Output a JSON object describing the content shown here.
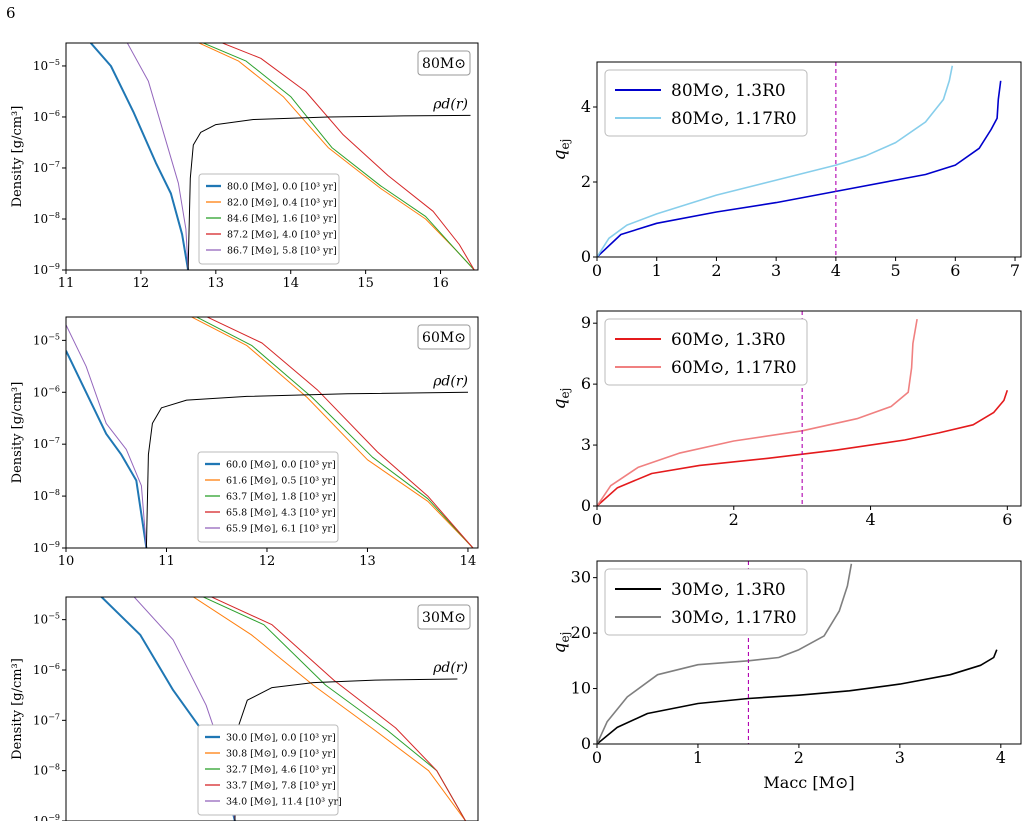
{
  "page_number": "6",
  "chart_data": [
    {
      "type": "line",
      "panel": "80Msun density",
      "mass_label": "80M⊙",
      "rho_label": "ρd(r)",
      "ylabel": "Density [g/cm³]",
      "xlabel": "",
      "y_scale": "log",
      "xlim": [
        11,
        16.5
      ],
      "ylim_exp": [
        -9,
        -4.55
      ],
      "xticks": [
        11,
        12,
        13,
        14,
        15,
        16
      ],
      "yticks": [
        -9,
        -8,
        -7,
        -6,
        -5
      ],
      "legend_position": "lower-center",
      "series": [
        {
          "name": "80.0 [M⊙], 0.0 [10³ yr]",
          "color": "#1f77b4",
          "width": 2.0,
          "x": [
            11.3,
            11.6,
            11.9,
            12.2,
            12.4,
            12.55,
            12.63
          ],
          "y": [
            -4.5,
            -5.0,
            -5.9,
            -6.9,
            -7.5,
            -8.3,
            -9.0
          ]
        },
        {
          "name": "82.0 [M⊙], 0.4 [10³ yr]",
          "color": "#ff7f0e",
          "width": 1.0,
          "x": [
            12.7,
            13.3,
            13.9,
            14.5,
            15.2,
            15.8,
            16.2,
            16.45
          ],
          "y": [
            -4.5,
            -4.9,
            -5.6,
            -6.6,
            -7.4,
            -8.0,
            -8.6,
            -9.0
          ]
        },
        {
          "name": "84.6 [M⊙], 1.6 [10³ yr]",
          "color": "#2ca02c",
          "width": 1.0,
          "x": [
            12.75,
            13.4,
            14.0,
            14.55,
            15.2,
            15.8,
            16.2,
            16.45
          ],
          "y": [
            -4.5,
            -4.9,
            -5.6,
            -6.6,
            -7.35,
            -7.95,
            -8.6,
            -9.0
          ]
        },
        {
          "name": "87.2 [M⊙], 4.0 [10³ yr]",
          "color": "#d62728",
          "width": 1.0,
          "x": [
            13.0,
            13.6,
            14.2,
            14.7,
            15.3,
            15.9,
            16.25,
            16.45
          ],
          "y": [
            -4.5,
            -4.85,
            -5.5,
            -6.35,
            -7.15,
            -7.85,
            -8.5,
            -9.0
          ]
        },
        {
          "name": "86.7 [M⊙], 5.8 [10³ yr]",
          "color": "#9467bd",
          "width": 1.0,
          "x": [
            11.8,
            12.1,
            12.3,
            12.5,
            12.6,
            12.63
          ],
          "y": [
            -4.5,
            -5.3,
            -6.3,
            -7.3,
            -8.2,
            -9.0
          ]
        },
        {
          "name": "ρd(r)",
          "color": "#000000",
          "width": 1.0,
          "legend": false,
          "x": [
            12.63,
            12.66,
            12.7,
            12.8,
            13.0,
            13.5,
            14.5,
            15.5,
            16.4
          ],
          "y": [
            -9.0,
            -7.2,
            -6.55,
            -6.3,
            -6.15,
            -6.05,
            -6.0,
            -5.98,
            -5.97
          ]
        }
      ]
    },
    {
      "type": "line",
      "panel": "60Msun density",
      "mass_label": "60M⊙",
      "rho_label": "ρd(r)",
      "ylabel": "Density [g/cm³]",
      "xlabel": "",
      "y_scale": "log",
      "xlim": [
        10,
        14.1
      ],
      "ylim_exp": [
        -9,
        -4.55
      ],
      "xticks": [
        10,
        11,
        12,
        13,
        14
      ],
      "yticks": [
        -9,
        -8,
        -7,
        -6,
        -5
      ],
      "legend_position": "lower-center",
      "series": [
        {
          "name": "60.0 [M⊙], 0.0 [10³ yr]",
          "color": "#1f77b4",
          "width": 2.0,
          "x": [
            10.0,
            10.2,
            10.4,
            10.55,
            10.7,
            10.8
          ],
          "y": [
            -5.2,
            -6.0,
            -6.8,
            -7.2,
            -7.7,
            -9.0
          ]
        },
        {
          "name": "61.6 [M⊙], 0.5 [10³ yr]",
          "color": "#ff7f0e",
          "width": 1.0,
          "x": [
            11.2,
            11.8,
            12.4,
            13.0,
            13.6,
            14.05
          ],
          "y": [
            -4.5,
            -5.1,
            -6.1,
            -7.3,
            -8.1,
            -9.0
          ]
        },
        {
          "name": "63.7 [M⊙], 1.8 [10³ yr]",
          "color": "#2ca02c",
          "width": 1.0,
          "x": [
            11.25,
            11.85,
            12.45,
            13.05,
            13.6,
            14.05
          ],
          "y": [
            -4.5,
            -5.1,
            -6.1,
            -7.25,
            -8.05,
            -9.0
          ]
        },
        {
          "name": "65.8 [M⊙], 4.3 [10³ yr]",
          "color": "#d62728",
          "width": 1.0,
          "x": [
            11.35,
            11.95,
            12.5,
            13.1,
            13.6,
            14.05
          ],
          "y": [
            -4.5,
            -5.05,
            -5.95,
            -7.15,
            -8.0,
            -9.0
          ]
        },
        {
          "name": "65.9 [M⊙], 6.1 [10³ yr]",
          "color": "#9467bd",
          "width": 1.0,
          "x": [
            10.0,
            10.2,
            10.4,
            10.6,
            10.75,
            10.8
          ],
          "y": [
            -4.7,
            -5.5,
            -6.6,
            -7.1,
            -7.8,
            -9.0
          ]
        },
        {
          "name": "ρd(r)",
          "color": "#000000",
          "width": 1.0,
          "legend": false,
          "x": [
            10.8,
            10.82,
            10.86,
            10.95,
            11.2,
            11.8,
            12.8,
            14.0
          ],
          "y": [
            -9.0,
            -7.2,
            -6.6,
            -6.3,
            -6.15,
            -6.08,
            -6.03,
            -6.0
          ]
        }
      ]
    },
    {
      "type": "line",
      "panel": "30Msun density",
      "mass_label": "30M⊙",
      "rho_label": "ρd(r)",
      "ylabel": "Density [g/cm³]",
      "xlabel": "",
      "y_scale": "log",
      "xlim": [
        0,
        1
      ],
      "ylim_exp": [
        -9,
        -4.55
      ],
      "xticks": [],
      "yticks": [
        -9,
        -8,
        -7,
        -6,
        -5
      ],
      "legend_position": "lower-center",
      "series": [
        {
          "name": "30.0 [M⊙], 0.0 [10³ yr]",
          "color": "#1f77b4",
          "width": 2.0,
          "x": [
            0.08,
            0.18,
            0.26,
            0.33,
            0.38,
            0.41
          ],
          "y": [
            -4.5,
            -5.3,
            -6.4,
            -7.2,
            -8.0,
            -9.0
          ]
        },
        {
          "name": "30.8 [M⊙], 0.9 [10³ yr]",
          "color": "#ff7f0e",
          "width": 1.0,
          "x": [
            0.3,
            0.45,
            0.6,
            0.75,
            0.88,
            0.97
          ],
          "y": [
            -4.5,
            -5.3,
            -6.3,
            -7.2,
            -8.0,
            -9.0
          ]
        },
        {
          "name": "32.7 [M⊙], 4.6 [10³ yr]",
          "color": "#2ca02c",
          "width": 1.0,
          "x": [
            0.32,
            0.48,
            0.63,
            0.78,
            0.9,
            0.97
          ],
          "y": [
            -4.5,
            -5.1,
            -6.3,
            -7.2,
            -8.0,
            -9.0
          ]
        },
        {
          "name": "33.7 [M⊙], 7.8 [10³ yr]",
          "color": "#d62728",
          "width": 1.0,
          "x": [
            0.34,
            0.5,
            0.65,
            0.8,
            0.9,
            0.97
          ],
          "y": [
            -4.5,
            -5.1,
            -6.2,
            -7.15,
            -8.0,
            -9.0
          ]
        },
        {
          "name": "34.0 [M⊙], 11.4 [10³ yr]",
          "color": "#9467bd",
          "width": 1.0,
          "x": [
            0.16,
            0.26,
            0.34,
            0.39,
            0.41
          ],
          "y": [
            -4.5,
            -5.4,
            -6.7,
            -7.9,
            -9.0
          ]
        },
        {
          "name": "ρd(r)",
          "color": "#000000",
          "width": 1.0,
          "legend": false,
          "x": [
            0.41,
            0.415,
            0.44,
            0.5,
            0.6,
            0.75,
            0.95
          ],
          "y": [
            -9.0,
            -7.2,
            -6.6,
            -6.35,
            -6.25,
            -6.2,
            -6.18
          ]
        }
      ]
    },
    {
      "type": "line",
      "panel": "80Msun qej",
      "ylabel": "qej",
      "xlabel": "",
      "xlim": [
        0,
        7.1
      ],
      "ylim": [
        0,
        5.2
      ],
      "xticks": [
        0,
        1,
        2,
        3,
        4,
        5,
        6,
        7
      ],
      "yticks": [
        0,
        2,
        4
      ],
      "vline_x": 4,
      "legend_position": "top-left",
      "series": [
        {
          "name": "80M⊙, 1.3R0",
          "color": "#0000cc",
          "width": 1.6,
          "x": [
            0,
            0.4,
            1,
            2,
            3,
            4,
            5,
            5.5,
            6.0,
            6.4,
            6.6,
            6.7,
            6.72,
            6.76
          ],
          "y": [
            0,
            0.6,
            0.9,
            1.2,
            1.45,
            1.75,
            2.05,
            2.2,
            2.45,
            2.9,
            3.4,
            3.7,
            4.2,
            4.7
          ]
        },
        {
          "name": "80M⊙, 1.17R0",
          "color": "#87ceeb",
          "width": 1.6,
          "x": [
            0,
            0.2,
            0.5,
            1,
            2,
            3,
            4,
            4.5,
            5,
            5.5,
            5.8,
            5.9,
            5.95
          ],
          "y": [
            0,
            0.5,
            0.85,
            1.15,
            1.65,
            2.05,
            2.45,
            2.7,
            3.05,
            3.6,
            4.2,
            4.7,
            5.1
          ]
        }
      ]
    },
    {
      "type": "line",
      "panel": "60Msun qej",
      "ylabel": "qej",
      "xlabel": "",
      "xlim": [
        0,
        6.2
      ],
      "ylim": [
        0,
        9.6
      ],
      "xticks": [
        0,
        2,
        4,
        6
      ],
      "yticks": [
        0,
        3,
        6,
        9
      ],
      "vline_x": 3,
      "legend_position": "top-left",
      "series": [
        {
          "name": "60M⊙, 1.3R0",
          "color": "#e41a1c",
          "width": 1.6,
          "x": [
            0,
            0.3,
            0.8,
            1.5,
            2.5,
            3.5,
            4.5,
            5.0,
            5.5,
            5.8,
            5.95,
            6.0
          ],
          "y": [
            0,
            0.9,
            1.6,
            2.0,
            2.35,
            2.75,
            3.25,
            3.6,
            4.0,
            4.6,
            5.2,
            5.7
          ]
        },
        {
          "name": "60M⊙, 1.17R0",
          "color": "#f08080",
          "width": 1.6,
          "x": [
            0,
            0.2,
            0.6,
            1.2,
            2.0,
            3.0,
            3.8,
            4.3,
            4.55,
            4.6,
            4.62,
            4.68
          ],
          "y": [
            0,
            1.0,
            1.9,
            2.6,
            3.2,
            3.7,
            4.3,
            4.9,
            5.6,
            6.8,
            8.0,
            9.2
          ]
        }
      ]
    },
    {
      "type": "line",
      "panel": "30Msun qej",
      "ylabel": "qej",
      "xlabel": "Macc [M⊙]",
      "xlim": [
        0,
        4.2
      ],
      "ylim": [
        0,
        33
      ],
      "xticks": [
        0,
        1,
        2,
        3,
        4
      ],
      "yticks": [
        0,
        10,
        20,
        30
      ],
      "vline_x": 1.5,
      "legend_position": "top-left",
      "series": [
        {
          "name": "30M⊙, 1.3R0",
          "color": "#000000",
          "width": 1.6,
          "x": [
            0,
            0.2,
            0.5,
            1.0,
            1.5,
            2.0,
            2.5,
            3.0,
            3.5,
            3.8,
            3.93,
            3.96
          ],
          "y": [
            0,
            3.0,
            5.5,
            7.3,
            8.2,
            8.8,
            9.6,
            10.8,
            12.5,
            14.2,
            15.6,
            17.0
          ]
        },
        {
          "name": "30M⊙, 1.17R0",
          "color": "#7f7f7f",
          "width": 1.6,
          "x": [
            0,
            0.1,
            0.3,
            0.6,
            1.0,
            1.5,
            1.8,
            2.0,
            2.25,
            2.4,
            2.48,
            2.52
          ],
          "y": [
            0,
            4.0,
            8.5,
            12.5,
            14.3,
            15.0,
            15.6,
            17.0,
            19.5,
            24.0,
            28.5,
            32.5
          ]
        }
      ]
    }
  ]
}
